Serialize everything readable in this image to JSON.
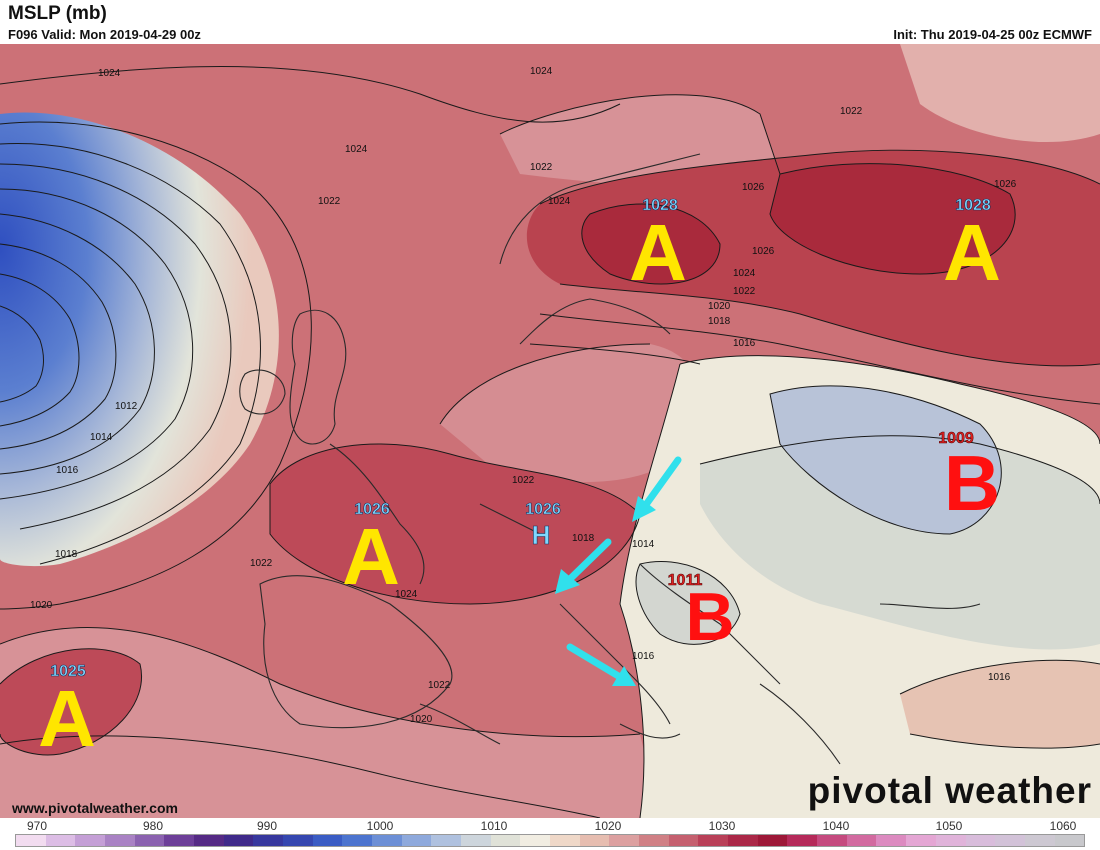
{
  "header": {
    "title": "MSLP (mb)",
    "valid": "F096 Valid: Mon 2019-04-29 00z",
    "init": "Init: Thu 2019-04-25 00z ECMWF"
  },
  "watermark": "pivotal weather",
  "website": "www.pivotalweather.com",
  "colorbar": {
    "labels": [
      "970",
      "980",
      "990",
      "1000",
      "1010",
      "1020",
      "1030",
      "1040",
      "1050",
      "1060"
    ],
    "colors": [
      "#f2dcf0",
      "#dcbde5",
      "#c49fd6",
      "#a982c4",
      "#8b62b0",
      "#6d3f99",
      "#552a85",
      "#3f2a8a",
      "#37389e",
      "#3547b0",
      "#3a5cc4",
      "#4c74cf",
      "#6c8fd6",
      "#8ea9dc",
      "#afc1df",
      "#cdd5dc",
      "#e0e2d8",
      "#f1ede2",
      "#efd8c8",
      "#e6bdb0",
      "#dca0a0",
      "#d08085",
      "#c5606f",
      "#b94058",
      "#ab2848",
      "#9d1838",
      "#b52a5a",
      "#c54a7f",
      "#d26aa0",
      "#dc8ac0",
      "#e4a6d4",
      "#e0b3da",
      "#d8bcdb",
      "#d2c2d8",
      "#cdc8d2",
      "#c8c8cc"
    ]
  },
  "labels": {
    "highs": [
      {
        "letter": "A",
        "value": "1028"
      },
      {
        "letter": "A",
        "value": "1028"
      },
      {
        "letter": "A",
        "value": "1026"
      },
      {
        "letter": "H",
        "value": "1026"
      },
      {
        "letter": "A",
        "value": "1025"
      }
    ],
    "lows": [
      {
        "letter": "B",
        "value": "1009"
      },
      {
        "letter": "B",
        "value": "1011"
      }
    ],
    "isobars": [
      "1024",
      "1024",
      "1024",
      "1022",
      "1022",
      "1022",
      "1024",
      "1026",
      "1026",
      "1026",
      "1024",
      "1022",
      "1020",
      "1018",
      "1016",
      "1012",
      "1014",
      "1016",
      "1018",
      "1020",
      "1022",
      "1024",
      "1022",
      "1020",
      "1018",
      "1014",
      "1016",
      "1016",
      "1022"
    ]
  },
  "colors": {
    "high_letter": "#ffe600",
    "low_letter": "#ff1010",
    "high_value": "#7fd8ff",
    "low_value": "#e02020",
    "arrow": "#30e0ec"
  }
}
